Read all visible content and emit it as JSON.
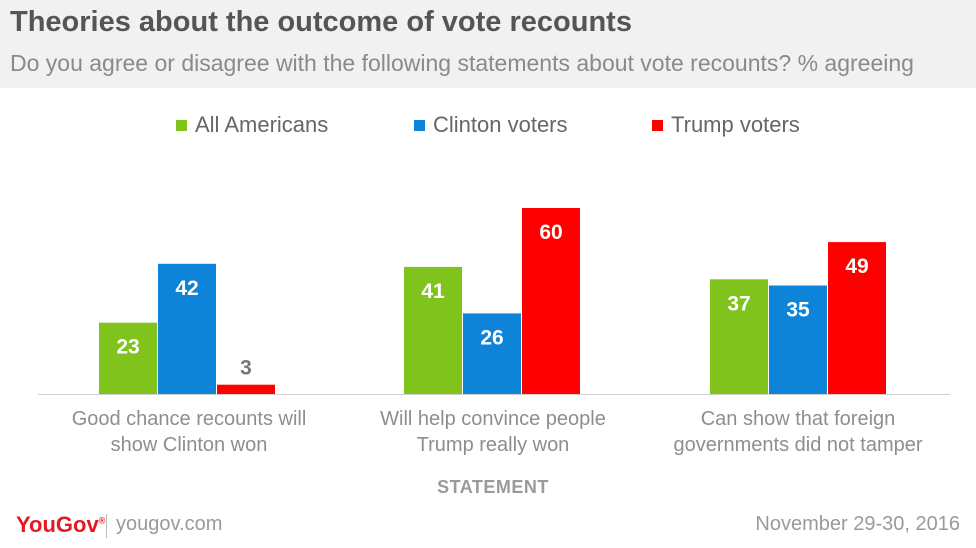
{
  "title": "Theories about the outcome of vote recounts",
  "subtitle": "Do you agree or disagree with the following statements about vote recounts? % agreeing",
  "footer": {
    "brand": "YouGov",
    "site": "yougov.com",
    "date": "November 29-30, 2016"
  },
  "colors": {
    "all_americans": "#80c31c",
    "clinton": "#0e84d8",
    "trump": "#ff0000"
  },
  "chart_data": {
    "type": "bar",
    "title": "Theories about the outcome of vote recounts",
    "xlabel": "STATEMENT",
    "ylabel": "",
    "ylim": [
      0,
      65
    ],
    "grid": false,
    "legend_position": "top",
    "categories": [
      [
        "Good chance recounts will",
        "show Clinton won"
      ],
      [
        "Will help convince people",
        "Trump really won"
      ],
      [
        "Can show that foreign",
        "governments did not tamper"
      ]
    ],
    "series": [
      {
        "name": "All Americans",
        "color": "#80c31c",
        "values": [
          23,
          41,
          37
        ]
      },
      {
        "name": "Clinton voters",
        "color": "#0e84d8",
        "values": [
          42,
          26,
          35
        ]
      },
      {
        "name": "Trump voters",
        "color": "#ff0000",
        "values": [
          3,
          60,
          49
        ]
      }
    ]
  }
}
